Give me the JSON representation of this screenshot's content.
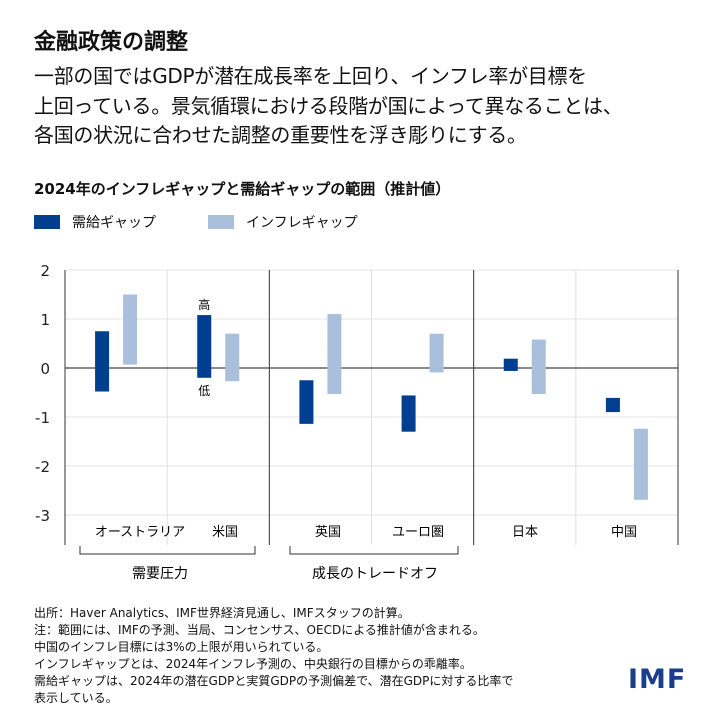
{
  "title": "金融政策の調整",
  "subtitle": [
    "一部の国ではGDPが潜在成長率を上回り、インフレ率が目標を",
    "上回っている。景気循環における段階が国によって異なることは、",
    "各国の状況に合わせた調整の重要性を浮き彫りにする。"
  ],
  "colors": {
    "demand": "#003f8f",
    "inflation": "#a9bfdb",
    "logo": "#1a3e8c"
  },
  "chart_data": {
    "type": "bar",
    "subtype": "floating-range",
    "title": "2024年のインフレギャップと需給ギャップの範囲（推計値）",
    "categories": [
      "オーストラリア",
      "米国",
      "英国",
      "ユーロ圏",
      "日本",
      "中国"
    ],
    "groups": [
      {
        "label": "需要圧力",
        "categories": [
          "オーストラリア",
          "米国"
        ]
      },
      {
        "label": "成長のトレードオフ",
        "categories": [
          "英国",
          "ユーロ圏"
        ]
      }
    ],
    "series": [
      {
        "name": "需給ギャップ",
        "color": "#003f8f",
        "high": [
          0.75,
          1.08,
          -0.25,
          -0.56,
          0.19,
          -0.61
        ],
        "low": [
          -0.48,
          -0.2,
          -1.14,
          -1.3,
          -0.06,
          -0.9
        ]
      },
      {
        "name": "インフレギャップ",
        "color": "#a9bfdb",
        "high": [
          1.5,
          0.7,
          1.1,
          0.7,
          0.58,
          -1.24
        ],
        "low": [
          0.07,
          -0.27,
          -0.53,
          -0.09,
          -0.53,
          -2.69
        ]
      }
    ],
    "annotations": {
      "high": "高",
      "low": "低"
    },
    "ylim": [
      -3,
      2
    ],
    "yticks": [
      2,
      1,
      0,
      -1,
      -2,
      -3
    ],
    "grid": true,
    "legend": "top-left"
  },
  "footer": [
    "出所：Haver Analytics、IMF世界経済見通し、IMFスタッフの計算。",
    "注：範囲には、IMFの予測、当局、コンセンサス、OECDによる推計値が含まれる。",
    "中国のインフレ目標には3%の上限が用いられている。",
    "インフレギャップとは、2024年インフレ予測の、中央銀行の目標からの乖離率。",
    "需給ギャップは、2024年の潜在GDPと実質GDPの予測偏差で、潜在GDPに対する比率で",
    "表示している。"
  ],
  "logo": "IMF"
}
